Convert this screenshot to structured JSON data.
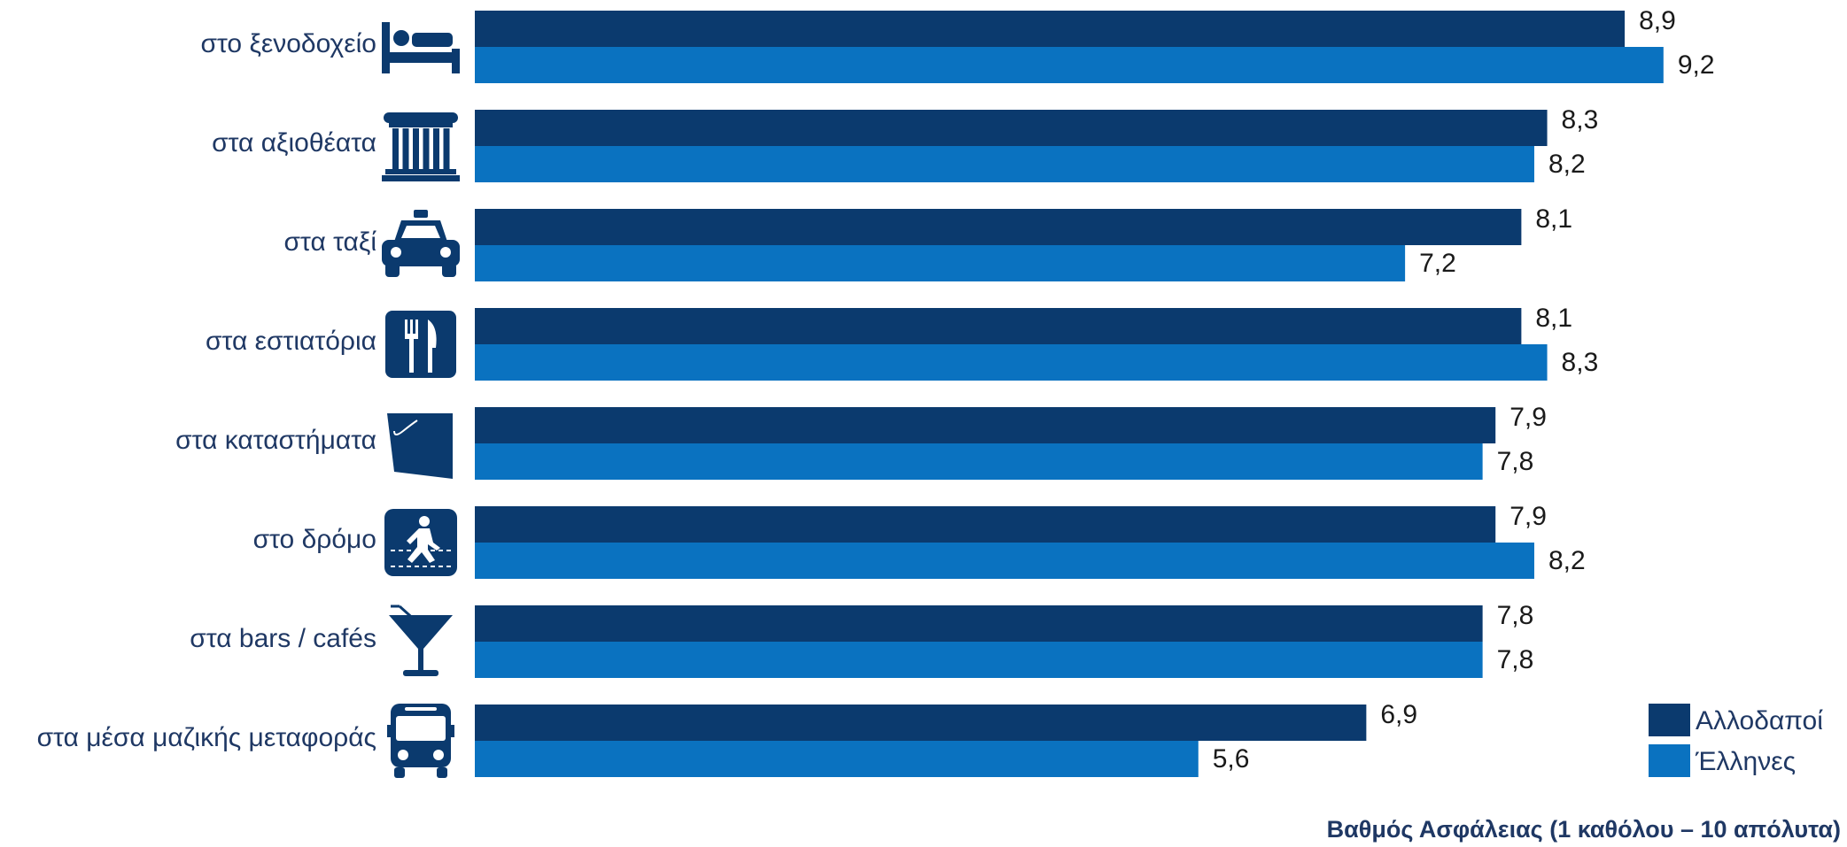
{
  "chart_data": {
    "type": "bar",
    "orientation": "horizontal",
    "categories": [
      "στο ξενοδοχείο",
      "στα αξιοθέατα",
      "στα ταξί",
      "στα εστιατόρια",
      "στα καταστήματα",
      "στο δρόμο",
      "στα bars / cafés",
      "στα μέσα μαζικής μεταφοράς"
    ],
    "category_icons": [
      "hotel-bed-icon",
      "monument-column-icon",
      "taxi-icon",
      "restaurant-fork-knife-icon",
      "shopping-bag-icon",
      "pedestrian-crossing-icon",
      "cocktail-glass-icon",
      "bus-icon"
    ],
    "series": [
      {
        "name": "Αλλοδαποί",
        "color": "#0b3a6e",
        "values": [
          8.9,
          8.3,
          8.1,
          8.1,
          7.9,
          7.9,
          7.8,
          6.9
        ],
        "labels": [
          "8,9",
          "8,3",
          "8,1",
          "8,1",
          "7,9",
          "7,9",
          "7,8",
          "6,9"
        ]
      },
      {
        "name": "Έλληνες",
        "color": "#0a72c0",
        "values": [
          9.2,
          8.2,
          7.2,
          8.3,
          7.8,
          8.2,
          7.8,
          5.6
        ],
        "labels": [
          "9,2",
          "8,2",
          "7,2",
          "8,3",
          "7,8",
          "8,2",
          "7,8",
          "5,6"
        ]
      }
    ],
    "xlabel": "Βαθμός Ασφάλειας (1 καθόλου – 10 απόλυτα)",
    "xlim": [
      0,
      10
    ],
    "grid": false,
    "legend_position": "bottom-right",
    "label_color": "#1f3864",
    "value_color": "#1a1a1a"
  }
}
